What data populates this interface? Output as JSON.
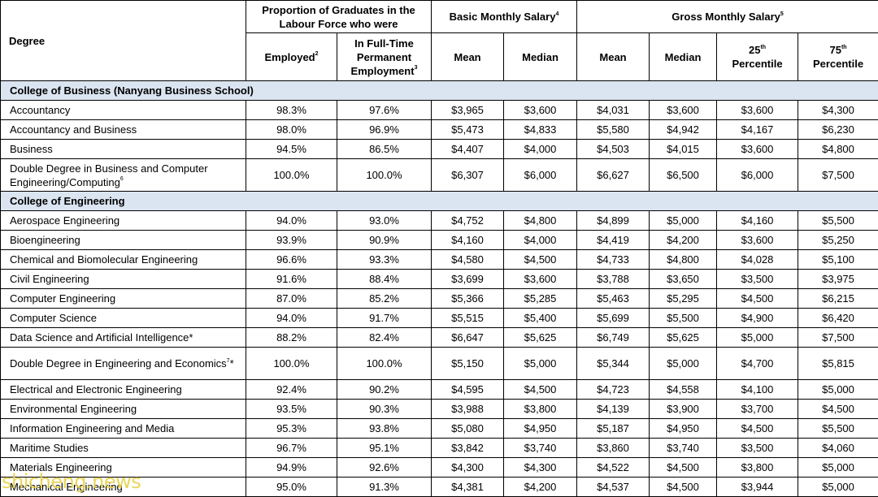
{
  "header": {
    "degree": "Degree",
    "proportion": "Proportion of Graduates in the Labour Force who were",
    "basic": "Basic Monthly Salary",
    "basic_sup": "4",
    "gross": "Gross Monthly Salary",
    "gross_sup": "5",
    "employed": "Employed",
    "employed_sup": "2",
    "fulltime": "In Full-Time Permanent Employment",
    "fulltime_sup": "3",
    "mean": "Mean",
    "median": "Median",
    "p25": "25",
    "p25_sup": "th",
    "p75": "75",
    "p75_sup": "th",
    "percentile": "Percentile"
  },
  "sections": [
    {
      "title": "College of Business (Nanyang Business School)",
      "rows": [
        {
          "degree": "Accountancy",
          "cells": [
            "98.3%",
            "97.6%",
            "$3,965",
            "$3,600",
            "$4,031",
            "$3,600",
            "$3,600",
            "$4,300"
          ]
        },
        {
          "degree": "Accountancy and Business",
          "cells": [
            "98.0%",
            "96.9%",
            "$5,473",
            "$4,833",
            "$5,580",
            "$4,942",
            "$4,167",
            "$6,230"
          ]
        },
        {
          "degree": "Business",
          "cells": [
            "94.5%",
            "86.5%",
            "$4,407",
            "$4,000",
            "$4,503",
            "$4,015",
            "$3,600",
            "$4,800"
          ]
        },
        {
          "degree": "Double Degree in Business and Computer Engineering/Computing",
          "sup": "6",
          "cells": [
            "100.0%",
            "100.0%",
            "$6,307",
            "$6,000",
            "$6,627",
            "$6,500",
            "$6,000",
            "$7,500"
          ]
        }
      ]
    },
    {
      "title": "College of Engineering",
      "rows": [
        {
          "degree": "Aerospace Engineering",
          "cells": [
            "94.0%",
            "93.0%",
            "$4,752",
            "$4,800",
            "$4,899",
            "$5,000",
            "$4,160",
            "$5,500"
          ]
        },
        {
          "degree": "Bioengineering",
          "cells": [
            "93.9%",
            "90.9%",
            "$4,160",
            "$4,000",
            "$4,419",
            "$4,200",
            "$3,600",
            "$5,250"
          ]
        },
        {
          "degree": "Chemical and Biomolecular Engineering",
          "cells": [
            "96.6%",
            "93.3%",
            "$4,580",
            "$4,500",
            "$4,733",
            "$4,800",
            "$4,028",
            "$5,100"
          ]
        },
        {
          "degree": "Civil Engineering",
          "cells": [
            "91.6%",
            "88.4%",
            "$3,699",
            "$3,600",
            "$3,788",
            "$3,650",
            "$3,500",
            "$3,975"
          ]
        },
        {
          "degree": "Computer Engineering",
          "cells": [
            "87.0%",
            "85.2%",
            "$5,366",
            "$5,285",
            "$5,463",
            "$5,295",
            "$4,500",
            "$6,215"
          ]
        },
        {
          "degree": "Computer Science",
          "cells": [
            "94.0%",
            "91.7%",
            "$5,515",
            "$5,400",
            "$5,699",
            "$5,500",
            "$4,900",
            "$6,420"
          ]
        },
        {
          "degree": "Data Science and Artificial Intelligence*",
          "cells": [
            "88.2%",
            "82.4%",
            "$6,647",
            "$5,625",
            "$6,749",
            "$5,625",
            "$5,000",
            "$7,500"
          ]
        },
        {
          "degree": "Double Degree in Engineering and Economics",
          "sup": "7",
          "suffix": "*",
          "cells": [
            "100.0%",
            "100.0%",
            "$5,150",
            "$5,000",
            "$5,344",
            "$5,000",
            "$4,700",
            "$5,815"
          ]
        },
        {
          "degree": "Electrical and Electronic Engineering",
          "cells": [
            "92.4%",
            "90.2%",
            "$4,595",
            "$4,500",
            "$4,723",
            "$4,558",
            "$4,100",
            "$5,000"
          ]
        },
        {
          "degree": "Environmental Engineering",
          "cells": [
            "93.5%",
            "90.3%",
            "$3,988",
            "$3,800",
            "$4,139",
            "$3,900",
            "$3,700",
            "$4,500"
          ]
        },
        {
          "degree": "Information Engineering and Media",
          "cells": [
            "95.3%",
            "93.8%",
            "$5,080",
            "$4,950",
            "$5,187",
            "$4,950",
            "$4,500",
            "$5,500"
          ]
        },
        {
          "degree": "Maritime Studies",
          "cells": [
            "96.7%",
            "95.1%",
            "$3,842",
            "$3,740",
            "$3,860",
            "$3,740",
            "$3,500",
            "$4,060"
          ]
        },
        {
          "degree": "Materials Engineering",
          "cells": [
            "94.9%",
            "92.6%",
            "$4,300",
            "$4,300",
            "$4,522",
            "$4,500",
            "$3,800",
            "$5,000"
          ]
        },
        {
          "degree": "Mechanical Engineering",
          "cells": [
            "95.0%",
            "91.3%",
            "$4,381",
            "$4,200",
            "$4,537",
            "$4,500",
            "$3,944",
            "$5,000"
          ]
        }
      ]
    }
  ],
  "watermark": "shicheng.news"
}
